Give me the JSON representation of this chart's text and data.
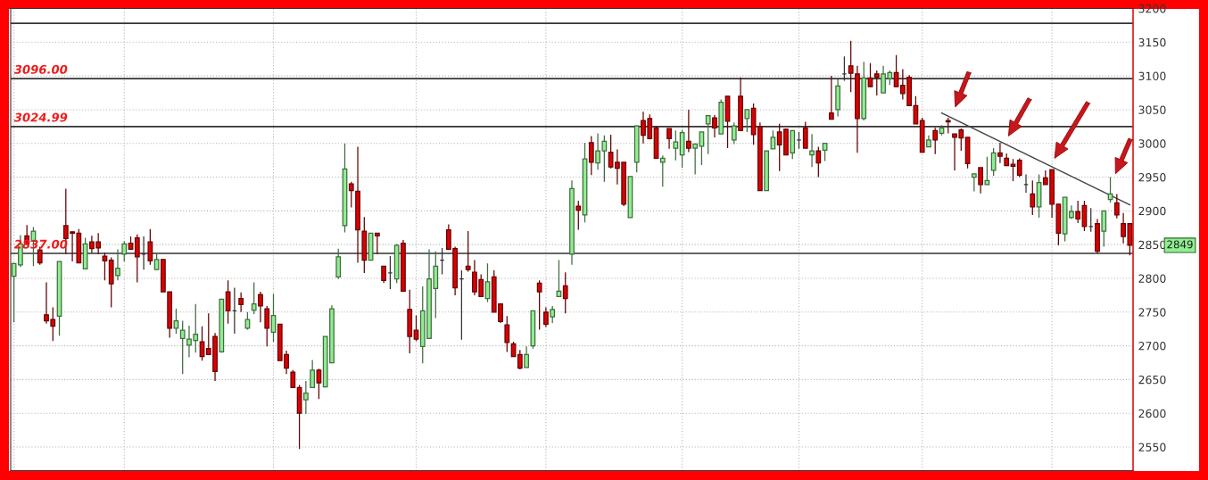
{
  "chart_data": {
    "type": "candlestick",
    "categories": [
      null,
      null,
      null,
      null,
      null,
      null,
      null,
      null,
      null,
      null,
      null,
      null,
      null,
      null,
      null,
      null,
      null,
      null,
      null,
      null,
      null,
      null,
      null,
      null,
      null,
      null,
      null,
      null,
      null,
      null,
      null,
      null,
      null,
      null,
      null,
      null,
      null,
      null,
      null,
      null,
      null,
      null,
      null,
      null,
      null,
      null,
      null,
      null,
      null,
      null,
      null,
      null,
      null,
      null,
      null,
      null,
      null,
      null,
      null,
      null,
      null,
      null,
      null,
      null,
      null,
      null,
      null,
      null,
      null,
      null,
      null,
      null,
      null,
      null,
      null,
      null,
      null,
      null,
      null,
      null,
      null,
      null,
      null,
      null,
      null,
      null,
      null,
      null,
      null,
      null,
      null,
      null,
      null,
      null,
      null,
      null,
      null,
      null,
      null,
      null,
      null,
      null,
      null,
      null,
      null,
      null,
      null,
      null,
      null,
      null,
      null,
      null,
      null,
      null,
      null,
      null,
      null,
      null,
      null,
      null,
      null,
      null,
      null,
      null,
      null,
      null,
      null,
      null,
      null,
      null,
      null,
      null,
      null,
      null,
      null,
      null,
      null,
      null,
      null,
      null,
      null,
      null,
      null,
      null,
      null,
      null,
      null,
      null,
      null,
      null,
      null,
      null,
      null,
      null,
      null,
      null,
      null,
      null,
      null,
      null,
      null,
      null,
      null,
      null,
      null,
      null,
      null,
      null,
      null,
      null,
      null,
      null,
      null
    ],
    "ohlc": [
      [
        2803,
        2822,
        2735,
        2822
      ],
      [
        2820,
        2864,
        2817,
        2851
      ],
      [
        2863,
        2879,
        2849,
        2851
      ],
      [
        2855,
        2876,
        2818,
        2870
      ],
      [
        2842,
        2847,
        2820,
        2823
      ],
      [
        2746,
        2794,
        2733,
        2737
      ],
      [
        2739,
        2757,
        2707,
        2729
      ],
      [
        2744,
        2825,
        2715,
        2825
      ],
      [
        2878,
        2933,
        2836,
        2859
      ],
      [
        2869,
        2869,
        2825,
        2867
      ],
      [
        2867,
        2873,
        2823,
        2823
      ],
      [
        2814,
        2860,
        2814,
        2851
      ],
      [
        2854,
        2863,
        2838,
        2844
      ],
      [
        2854,
        2867,
        2836,
        2845
      ],
      [
        2833,
        2838,
        2797,
        2826
      ],
      [
        2827,
        2831,
        2757,
        2792
      ],
      [
        2804,
        2843,
        2797,
        2815
      ],
      [
        2836,
        2855,
        2825,
        2851
      ],
      [
        2852,
        2862,
        2843,
        2843
      ],
      [
        2860,
        2865,
        2794,
        2832
      ],
      [
        2836,
        2862,
        2813,
        2836
      ],
      [
        2854,
        2873,
        2820,
        2826
      ],
      [
        2813,
        2838,
        2813,
        2828
      ],
      [
        2828,
        2828,
        2780,
        2780
      ],
      [
        2780,
        2780,
        2712,
        2726
      ],
      [
        2726,
        2755,
        2718,
        2737
      ],
      [
        2711,
        2737,
        2658,
        2723
      ],
      [
        2701,
        2730,
        2683,
        2710
      ],
      [
        2708,
        2762,
        2690,
        2717
      ],
      [
        2706,
        2729,
        2678,
        2684
      ],
      [
        2696,
        2748,
        2687,
        2687
      ],
      [
        2714,
        2719,
        2648,
        2662
      ],
      [
        2691,
        2769,
        2690,
        2769
      ],
      [
        2780,
        2797,
        2733,
        2752
      ],
      [
        2752,
        2786,
        2718,
        2752
      ],
      [
        2770,
        2779,
        2750,
        2761
      ],
      [
        2726,
        2750,
        2724,
        2739
      ],
      [
        2753,
        2794,
        2747,
        2762
      ],
      [
        2776,
        2780,
        2735,
        2759
      ],
      [
        2755,
        2759,
        2699,
        2726
      ],
      [
        2720,
        2777,
        2706,
        2745
      ],
      [
        2732,
        2732,
        2678,
        2678
      ],
      [
        2687,
        2693,
        2658,
        2667
      ],
      [
        2661,
        2664,
        2638,
        2638
      ],
      [
        2638,
        2642,
        2547,
        2600
      ],
      [
        2620,
        2648,
        2599,
        2630
      ],
      [
        2638,
        2679,
        2638,
        2664
      ],
      [
        2664,
        2666,
        2621,
        2645
      ],
      [
        2639,
        2714,
        2639,
        2714
      ],
      [
        2675,
        2760,
        2675,
        2755
      ],
      [
        2802,
        2844,
        2799,
        2832
      ],
      [
        2878,
        3000,
        2868,
        2962
      ],
      [
        2940,
        2943,
        2905,
        2930
      ],
      [
        2929,
        2995,
        2823,
        2872
      ],
      [
        2870,
        2891,
        2808,
        2827
      ],
      [
        2827,
        2867,
        2827,
        2867
      ],
      [
        2867,
        2867,
        2836,
        2863
      ],
      [
        2818,
        2818,
        2793,
        2797
      ],
      [
        2808,
        2833,
        2784,
        2808
      ],
      [
        2799,
        2851,
        2793,
        2849
      ],
      [
        2852,
        2857,
        2780,
        2781
      ],
      [
        2754,
        2783,
        2689,
        2714
      ],
      [
        2723,
        2745,
        2707,
        2710
      ],
      [
        2699,
        2788,
        2674,
        2752
      ],
      [
        2711,
        2843,
        2711,
        2799
      ],
      [
        2785,
        2840,
        2741,
        2818
      ],
      [
        2827,
        2845,
        2806,
        2827
      ],
      [
        2872,
        2880,
        2842,
        2843
      ],
      [
        2844,
        2847,
        2775,
        2786
      ],
      [
        2799,
        2812,
        2709,
        2799
      ],
      [
        2818,
        2870,
        2810,
        2813
      ],
      [
        2809,
        2827,
        2775,
        2780
      ],
      [
        2798,
        2806,
        2773,
        2773
      ],
      [
        2770,
        2822,
        2765,
        2795
      ],
      [
        2802,
        2812,
        2750,
        2750
      ],
      [
        2762,
        2762,
        2734,
        2736
      ],
      [
        2731,
        2744,
        2691,
        2705
      ],
      [
        2703,
        2706,
        2684,
        2684
      ],
      [
        2687,
        2694,
        2665,
        2667
      ],
      [
        2668,
        2699,
        2668,
        2687
      ],
      [
        2700,
        2752,
        2696,
        2752
      ],
      [
        2793,
        2797,
        2724,
        2780
      ],
      [
        2750,
        2757,
        2728,
        2732
      ],
      [
        2743,
        2759,
        2734,
        2754
      ],
      [
        2773,
        2827,
        2773,
        2781
      ],
      [
        2789,
        2809,
        2748,
        2770
      ],
      [
        2836,
        2945,
        2820,
        2933
      ],
      [
        2907,
        2915,
        2872,
        2901
      ],
      [
        2894,
        3001,
        2883,
        2977
      ],
      [
        3001,
        3011,
        2953,
        2972
      ],
      [
        2971,
        3015,
        2961,
        2989
      ],
      [
        2989,
        3012,
        2943,
        3003
      ],
      [
        2987,
        3013,
        2963,
        2965
      ],
      [
        2972,
        2991,
        2939,
        2963
      ],
      [
        2972,
        2972,
        2907,
        2910
      ],
      [
        2890,
        2951,
        2890,
        2951
      ],
      [
        2972,
        3027,
        2957,
        3026
      ],
      [
        3034,
        3047,
        3000,
        3012
      ],
      [
        3037,
        3043,
        3006,
        3007
      ],
      [
        3023,
        3026,
        2978,
        2978
      ],
      [
        2972,
        2982,
        2936,
        2978
      ],
      [
        3022,
        3022,
        2992,
        3007
      ],
      [
        2993,
        3019,
        2975,
        3002
      ],
      [
        2983,
        3020,
        2964,
        3016
      ],
      [
        3003,
        3050,
        2987,
        2993
      ],
      [
        2993,
        2999,
        2954,
        2999
      ],
      [
        2996,
        3017,
        2968,
        3017
      ],
      [
        3029,
        3041,
        2984,
        3041
      ],
      [
        3038,
        3042,
        3009,
        3023
      ],
      [
        3014,
        3065,
        3014,
        3061
      ],
      [
        3070,
        3070,
        2993,
        3033
      ],
      [
        3005,
        3031,
        2999,
        3026
      ],
      [
        3070,
        3098,
        3019,
        3019
      ],
      [
        3037,
        3050,
        3017,
        3050
      ],
      [
        3052,
        3059,
        2998,
        3013
      ],
      [
        3025,
        3031,
        2930,
        2930
      ],
      [
        2930,
        2989,
        2930,
        2989
      ],
      [
        2992,
        3019,
        2992,
        3009
      ],
      [
        3017,
        3029,
        2959,
        2998
      ],
      [
        3021,
        3022,
        2983,
        2983
      ],
      [
        2986,
        3019,
        2977,
        3019
      ],
      [
        3005,
        3017,
        2992,
        3005
      ],
      [
        3023,
        3032,
        2993,
        2993
      ],
      [
        2983,
        3014,
        2965,
        2989
      ],
      [
        2989,
        2995,
        2950,
        2971
      ],
      [
        2990,
        3000,
        2974,
        3000
      ],
      [
        3045,
        3100,
        3036,
        3036
      ],
      [
        3050,
        3095,
        3040,
        3085
      ],
      [
        3103,
        3129,
        3093,
        3103
      ],
      [
        3115,
        3152,
        3076,
        3104
      ],
      [
        3103,
        3115,
        2986,
        3037
      ],
      [
        3037,
        3121,
        3034,
        3097
      ],
      [
        3097,
        3119,
        3084,
        3084
      ],
      [
        3103,
        3108,
        3071,
        3098
      ],
      [
        3075,
        3115,
        3075,
        3103
      ],
      [
        3096,
        3108,
        3087,
        3105
      ],
      [
        3105,
        3131,
        3084,
        3084
      ],
      [
        3086,
        3110,
        3065,
        3074
      ],
      [
        3098,
        3101,
        3056,
        3056
      ],
      [
        3056,
        3070,
        3029,
        3029
      ],
      [
        3034,
        3038,
        2987,
        2987
      ],
      [
        2995,
        3012,
        2995,
        3005
      ],
      [
        3019,
        3023,
        2984,
        3005
      ],
      [
        3015,
        3027,
        3012,
        3023
      ],
      [
        3034,
        3038,
        3015,
        3032
      ],
      [
        3014,
        3014,
        2960,
        3009
      ],
      [
        3020,
        3022,
        2989,
        3008
      ],
      [
        3009,
        3009,
        2963,
        2970
      ],
      [
        2950,
        2955,
        2929,
        2955
      ],
      [
        2964,
        2964,
        2926,
        2939
      ],
      [
        2939,
        2980,
        2939,
        2945
      ],
      [
        2960,
        2993,
        2952,
        2986
      ],
      [
        2986,
        3001,
        2971,
        2981
      ],
      [
        2978,
        2985,
        2967,
        2967
      ],
      [
        2969,
        2977,
        2944,
        2966
      ],
      [
        2975,
        2978,
        2950,
        2953
      ],
      [
        2939,
        2954,
        2927,
        2939
      ],
      [
        2925,
        2945,
        2894,
        2906
      ],
      [
        2906,
        2954,
        2890,
        2942
      ],
      [
        2949,
        2960,
        2939,
        2939
      ],
      [
        2961,
        2961,
        2890,
        2910
      ],
      [
        2910,
        2910,
        2849,
        2867
      ],
      [
        2866,
        2920,
        2855,
        2920
      ],
      [
        2890,
        2908,
        2888,
        2899
      ],
      [
        2899,
        2915,
        2882,
        2888
      ],
      [
        2908,
        2915,
        2870,
        2877
      ],
      [
        2877,
        2904,
        2869,
        2877
      ],
      [
        2881,
        2888,
        2837,
        2840
      ],
      [
        2870,
        2900,
        2847,
        2900
      ],
      [
        2917,
        2950,
        2912,
        2925
      ],
      [
        2912,
        2925,
        2889,
        2894
      ],
      [
        2881,
        2897,
        2852,
        2862
      ],
      [
        2881,
        2881,
        2834,
        2849
      ]
    ],
    "colors": [
      "#90ee90",
      "#90ee90",
      "#dd0000",
      "#90ee90",
      "#dd0000",
      "#dd0000",
      "#dd0000",
      "#90ee90",
      "#dd0000",
      "#dd0000",
      "#dd0000",
      "#90ee90",
      "#dd0000",
      "#dd0000",
      "#dd0000",
      "#dd0000",
      "#90ee90",
      "#90ee90",
      "#dd0000",
      "#dd0000",
      "#333333",
      "#dd0000",
      "#90ee90",
      "#dd0000",
      "#dd0000",
      "#90ee90",
      "#90ee90",
      "#90ee90",
      "#90ee90",
      "#dd0000",
      "#dd0000",
      "#dd0000",
      "#90ee90",
      "#dd0000",
      "#333333",
      "#dd0000",
      "#90ee90",
      "#90ee90",
      "#dd0000",
      "#dd0000",
      "#90ee90",
      "#dd0000",
      "#dd0000",
      "#dd0000",
      "#dd0000",
      "#90ee90",
      "#90ee90",
      "#dd0000",
      "#90ee90",
      "#90ee90",
      "#90ee90",
      "#90ee90",
      "#dd0000",
      "#dd0000",
      "#dd0000",
      "#90ee90",
      "#dd0000",
      "#dd0000",
      "#333333",
      "#90ee90",
      "#dd0000",
      "#dd0000",
      "#dd0000",
      "#90ee90",
      "#90ee90",
      "#90ee90",
      "#333333",
      "#dd0000",
      "#dd0000",
      "#333333",
      "#dd0000",
      "#dd0000",
      "#dd0000",
      "#90ee90",
      "#dd0000",
      "#dd0000",
      "#dd0000",
      "#dd0000",
      "#dd0000",
      "#90ee90",
      "#90ee90",
      "#dd0000",
      "#dd0000",
      "#90ee90",
      "#90ee90",
      "#dd0000",
      "#90ee90",
      "#dd0000",
      "#90ee90",
      "#dd0000",
      "#90ee90",
      "#90ee90",
      "#dd0000",
      "#dd0000",
      "#dd0000",
      "#90ee90",
      "#90ee90",
      "#dd0000",
      "#dd0000",
      "#dd0000",
      "#90ee90",
      "#dd0000",
      "#90ee90",
      "#90ee90",
      "#dd0000",
      "#90ee90",
      "#90ee90",
      "#90ee90",
      "#dd0000",
      "#90ee90",
      "#dd0000",
      "#90ee90",
      "#dd0000",
      "#90ee90",
      "#dd0000",
      "#dd0000",
      "#90ee90",
      "#90ee90",
      "#dd0000",
      "#dd0000",
      "#90ee90",
      "#333333",
      "#dd0000",
      "#90ee90",
      "#dd0000",
      "#90ee90",
      "#dd0000",
      "#90ee90",
      "#333333",
      "#dd0000",
      "#dd0000",
      "#90ee90",
      "#dd0000",
      "#dd0000",
      "#90ee90",
      "#90ee90",
      "#dd0000",
      "#dd0000",
      "#dd0000",
      "#dd0000",
      "#dd0000",
      "#90ee90",
      "#dd0000",
      "#90ee90",
      "#dd0000",
      "#dd0000",
      "#dd0000",
      "#dd0000",
      "#90ee90",
      "#dd0000",
      "#90ee90",
      "#90ee90",
      "#dd0000",
      "#dd0000",
      "#dd0000",
      "#dd0000",
      "#333333",
      "#dd0000",
      "#90ee90",
      "#dd0000",
      "#dd0000",
      "#dd0000",
      "#90ee90",
      "#90ee90",
      "#dd0000",
      "#dd0000",
      "#333333",
      "#dd0000",
      "#90ee90",
      "#90ee90",
      "#dd0000",
      "#dd0000",
      "#dd0000"
    ],
    "series": [
      {
        "type": "line",
        "color": "#444444",
        "values": [
          null,
          null,
          null,
          null,
          null,
          null,
          null,
          null,
          null,
          null,
          null,
          null,
          null,
          null,
          null,
          null,
          null,
          null,
          null,
          null,
          null,
          null,
          null,
          null,
          null,
          null,
          null,
          null,
          null,
          null,
          null,
          null,
          null,
          null,
          null,
          null,
          null,
          null,
          null,
          null,
          null,
          null,
          null,
          null,
          null,
          null,
          null,
          null,
          null,
          null,
          null,
          null,
          null,
          null,
          null,
          null,
          null,
          null,
          null,
          null,
          null,
          null,
          null,
          null,
          null,
          null,
          null,
          null,
          null,
          null,
          null,
          null,
          null,
          null,
          null,
          null,
          null,
          null,
          null,
          null,
          null,
          null,
          null,
          null,
          null,
          null,
          null,
          null,
          null,
          null,
          null,
          null,
          null,
          null,
          null,
          null,
          null,
          null,
          null,
          null,
          null,
          null,
          null,
          null,
          null,
          null,
          null,
          null,
          null,
          null,
          null,
          null,
          null,
          null,
          null,
          null,
          null,
          null,
          null,
          null,
          null,
          null,
          null,
          null,
          null,
          null,
          null,
          null,
          null,
          null,
          null,
          null,
          null,
          null,
          null,
          null,
          null,
          null,
          null,
          null,
          null,
          null,
          null,
          3045,
          null,
          null,
          null,
          null,
          null,
          null,
          null,
          null,
          null,
          null,
          null,
          null,
          null,
          null,
          null,
          null,
          null,
          null,
          null,
          null,
          null,
          null,
          null,
          null,
          null,
          null,
          null,
          null,
          2909
        ]
      }
    ],
    "ylim": [
      2515,
      3200
    ],
    "yticks": [
      2550,
      2600,
      2650,
      2700,
      2750,
      2800,
      2850,
      2900,
      2950,
      3000,
      3050,
      3100,
      3150,
      3200
    ],
    "grid": "y",
    "tick_labels": "y",
    "ref_lines": [
      {
        "axis": "y",
        "value": 3178,
        "color": "#333333"
      },
      {
        "axis": "y",
        "value": 3096,
        "label": "3096.00",
        "color": "#333333"
      },
      {
        "axis": "y",
        "value": 3024.99,
        "label": "3024.99",
        "color": "#333333"
      },
      {
        "axis": "y",
        "value": 2837,
        "label": "2837.00",
        "color": "#333333"
      }
    ],
    "annotations": [
      "2849"
    ]
  }
}
